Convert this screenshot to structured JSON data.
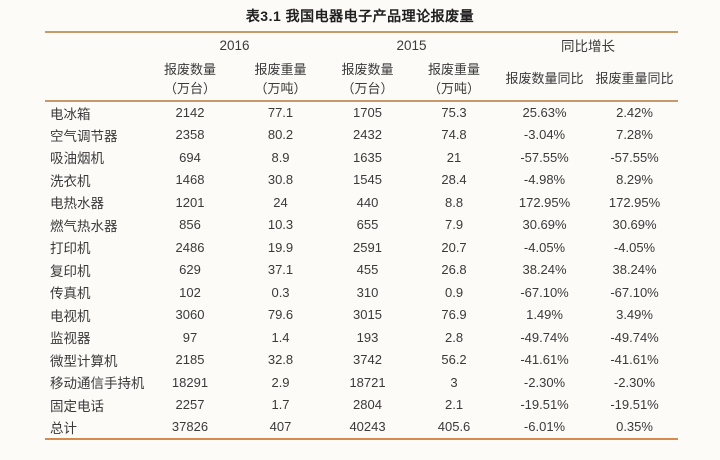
{
  "title": "表3.1 我国电器电子产品理论报废量",
  "table": {
    "group_headers": [
      {
        "label": "2016"
      },
      {
        "label": "2015"
      },
      {
        "label": "同比增长"
      }
    ],
    "columns": [
      {
        "line1": "报废数量",
        "line2": "（万台）"
      },
      {
        "line1": "报废重量",
        "line2": "（万吨）"
      },
      {
        "line1": "报废数量",
        "line2": "（万台）"
      },
      {
        "line1": "报废重量",
        "line2": "（万吨）"
      },
      {
        "line1": "报废数量同比",
        "line2": ""
      },
      {
        "line1": "报废重量同比",
        "line2": ""
      }
    ],
    "rows": [
      {
        "name": "电冰箱",
        "values": [
          "2142",
          "77.1",
          "1705",
          "75.3",
          "25.63%",
          "2.42%"
        ]
      },
      {
        "name": "空气调节器",
        "values": [
          "2358",
          "80.2",
          "2432",
          "74.8",
          "-3.04%",
          "7.28%"
        ]
      },
      {
        "name": "吸油烟机",
        "values": [
          "694",
          "8.9",
          "1635",
          "21",
          "-57.55%",
          "-57.55%"
        ]
      },
      {
        "name": "洗衣机",
        "values": [
          "1468",
          "30.8",
          "1545",
          "28.4",
          "-4.98%",
          "8.29%"
        ]
      },
      {
        "name": "电热水器",
        "values": [
          "1201",
          "24",
          "440",
          "8.8",
          "172.95%",
          "172.95%"
        ]
      },
      {
        "name": "燃气热水器",
        "values": [
          "856",
          "10.3",
          "655",
          "7.9",
          "30.69%",
          "30.69%"
        ]
      },
      {
        "name": "打印机",
        "values": [
          "2486",
          "19.9",
          "2591",
          "20.7",
          "-4.05%",
          "-4.05%"
        ]
      },
      {
        "name": "复印机",
        "values": [
          "629",
          "37.1",
          "455",
          "26.8",
          "38.24%",
          "38.24%"
        ]
      },
      {
        "name": "传真机",
        "values": [
          "102",
          "0.3",
          "310",
          "0.9",
          "-67.10%",
          "-67.10%"
        ]
      },
      {
        "name": "电视机",
        "values": [
          "3060",
          "79.6",
          "3015",
          "76.9",
          "1.49%",
          "3.49%"
        ]
      },
      {
        "name": "监视器",
        "values": [
          "97",
          "1.4",
          "193",
          "2.8",
          "-49.74%",
          "-49.74%"
        ]
      },
      {
        "name": "微型计算机",
        "values": [
          "2185",
          "32.8",
          "3742",
          "56.2",
          "-41.61%",
          "-41.61%"
        ]
      },
      {
        "name": "移动通信手持机",
        "values": [
          "18291",
          "2.9",
          "18721",
          "3",
          "-2.30%",
          "-2.30%"
        ]
      },
      {
        "name": "固定电话",
        "values": [
          "2257",
          "1.7",
          "2804",
          "2.1",
          "-19.51%",
          "-19.51%"
        ]
      },
      {
        "name": "总计",
        "values": [
          "37826",
          "407",
          "40243",
          "405.6",
          "-6.01%",
          "0.35%"
        ]
      }
    ]
  },
  "colors": {
    "rule_top": "#c69a6a",
    "rule_bottom": "#d58a4e",
    "text": "#3a3a3a",
    "title_text": "#1f1f1f",
    "background": "#fcfbf8"
  }
}
